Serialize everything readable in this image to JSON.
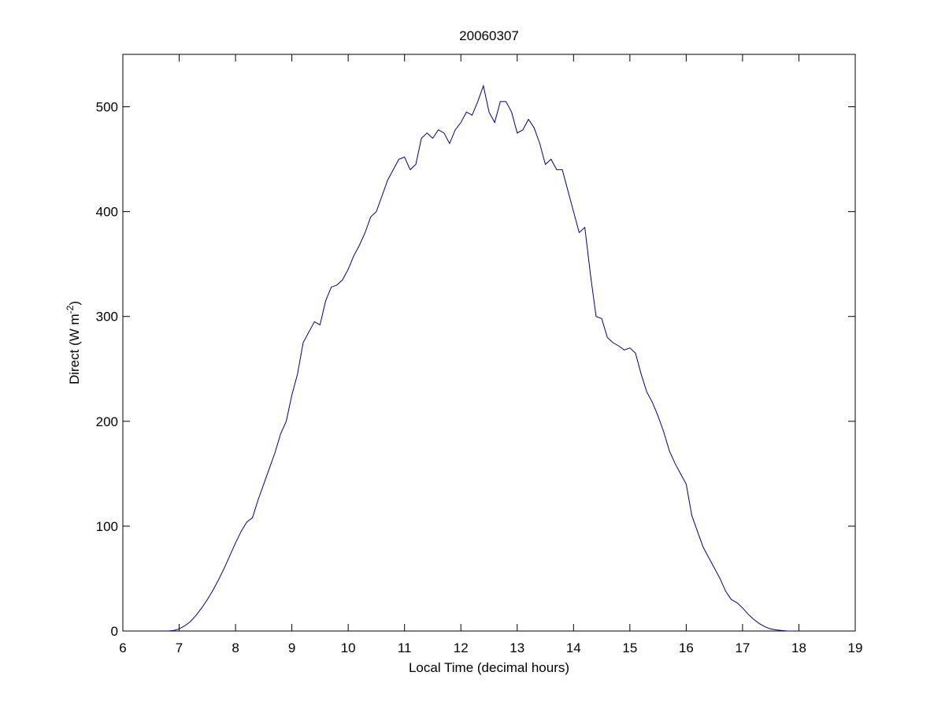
{
  "chart_data": {
    "type": "line",
    "title": "20060307",
    "xlabel": "Local Time (decimal hours)",
    "ylabel": {
      "text": "Direct (W m",
      "superscript": "-2",
      "suffix": ")"
    },
    "x": [
      6.8,
      6.9,
      7,
      7.1,
      7.2,
      7.3,
      7.4,
      7.5,
      7.6,
      7.7,
      7.8,
      7.9,
      8,
      8.1,
      8.2,
      8.3,
      8.4,
      8.5,
      8.6,
      8.7,
      8.8,
      8.9,
      9,
      9.1,
      9.2,
      9.3,
      9.4,
      9.5,
      9.6,
      9.7,
      9.8,
      9.9,
      10,
      10.1,
      10.2,
      10.3,
      10.4,
      10.5,
      10.6,
      10.7,
      10.8,
      10.9,
      11,
      11.1,
      11.2,
      11.3,
      11.4,
      11.5,
      11.6,
      11.7,
      11.8,
      11.9,
      12,
      12.1,
      12.2,
      12.3,
      12.4,
      12.5,
      12.6,
      12.7,
      12.8,
      12.9,
      13,
      13.1,
      13.2,
      13.3,
      13.4,
      13.5,
      13.6,
      13.7,
      13.8,
      13.9,
      14,
      14.1,
      14.2,
      14.3,
      14.4,
      14.5,
      14.6,
      14.7,
      14.8,
      14.9,
      15,
      15.1,
      15.2,
      15.3,
      15.4,
      15.5,
      15.6,
      15.7,
      15.8,
      15.9,
      16,
      16.1,
      16.2,
      16.3,
      16.4,
      16.5,
      16.6,
      16.7,
      16.8,
      16.9,
      17,
      17.1,
      17.2,
      17.3,
      17.4,
      17.5,
      17.6,
      17.7,
      17.8,
      17.9
    ],
    "series": [
      {
        "color": "#00007f",
        "values": [
          0,
          0.5,
          2,
          5,
          9,
          15,
          22,
          30,
          39,
          49,
          60,
          72,
          84,
          95,
          104,
          108,
          125,
          140,
          155,
          170,
          188,
          200,
          225,
          245,
          275,
          285,
          295,
          292,
          315,
          328,
          330,
          335,
          345,
          358,
          368,
          380,
          395,
          400,
          415,
          430,
          440,
          450,
          452,
          440,
          445,
          470,
          475,
          470,
          478,
          475,
          465,
          478,
          485,
          495,
          492,
          505,
          520,
          495,
          485,
          505,
          505,
          495,
          475,
          478,
          488,
          480,
          465,
          445,
          450,
          440,
          440,
          420,
          400,
          380,
          385,
          340,
          300,
          298,
          280,
          275,
          272,
          268,
          270,
          265,
          245,
          228,
          218,
          205,
          190,
          172,
          160,
          150,
          140,
          110,
          95,
          80,
          70,
          60,
          50,
          38,
          30,
          27,
          22,
          16,
          11,
          7,
          4,
          2,
          1,
          0.5,
          0,
          0
        ]
      }
    ],
    "xlim": [
      6,
      19
    ],
    "xticks": [
      6,
      7,
      8,
      9,
      10,
      11,
      12,
      13,
      14,
      15,
      16,
      17,
      18,
      19
    ],
    "ylim": [
      0,
      550
    ],
    "yticks": [
      0,
      100,
      200,
      300,
      400,
      500
    ],
    "grid": false
  }
}
